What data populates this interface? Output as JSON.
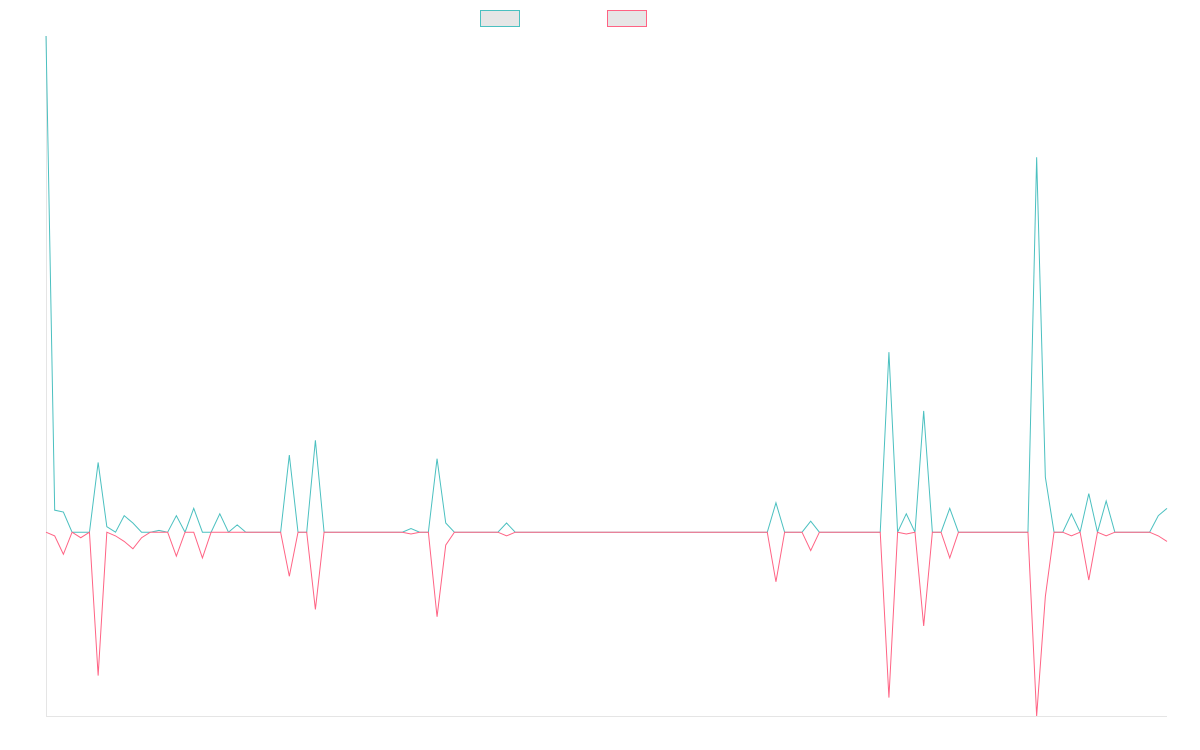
{
  "chart_data": {
    "type": "line",
    "title": "",
    "xlabel": "",
    "ylabel": "",
    "ylim": [
      -1,
      2.7
    ],
    "grid": false,
    "legend_placement": "top-center",
    "point_count": 130,
    "series": [
      {
        "name": "",
        "color": "#4bc0c0",
        "fill": "#e6e6e6",
        "points": [
          [
            0,
            2.7
          ],
          [
            1,
            0.12
          ],
          [
            2,
            0.11
          ],
          [
            6,
            0.38
          ],
          [
            7,
            0.03
          ],
          [
            9,
            0.09
          ],
          [
            10,
            0.05
          ],
          [
            13,
            0.01
          ],
          [
            15,
            0.09
          ],
          [
            17,
            0.13
          ],
          [
            20,
            0.1
          ],
          [
            22,
            0.04
          ],
          [
            28,
            0.42
          ],
          [
            31,
            0.5
          ],
          [
            42,
            0.02
          ],
          [
            45,
            0.4
          ],
          [
            46,
            0.05
          ],
          [
            53,
            0.05
          ],
          [
            84,
            0.16
          ],
          [
            88,
            0.06
          ],
          [
            97,
            0.98
          ],
          [
            99,
            0.1
          ],
          [
            101,
            0.66
          ],
          [
            104,
            0.13
          ],
          [
            114,
            2.04
          ],
          [
            115,
            0.3
          ],
          [
            118,
            0.1
          ],
          [
            120,
            0.21
          ],
          [
            122,
            0.17
          ],
          [
            128,
            0.09
          ],
          [
            129,
            0.13
          ]
        ]
      },
      {
        "name": "",
        "color": "#ff6384",
        "fill": "#e6e6e6",
        "points": [
          [
            1,
            -0.02
          ],
          [
            2,
            -0.12
          ],
          [
            4,
            -0.03
          ],
          [
            6,
            -0.78
          ],
          [
            8,
            -0.02
          ],
          [
            9,
            -0.05
          ],
          [
            10,
            -0.09
          ],
          [
            11,
            -0.03
          ],
          [
            15,
            -0.13
          ],
          [
            18,
            -0.14
          ],
          [
            28,
            -0.24
          ],
          [
            31,
            -0.42
          ],
          [
            42,
            -0.01
          ],
          [
            45,
            -0.46
          ],
          [
            46,
            -0.07
          ],
          [
            53,
            -0.02
          ],
          [
            84,
            -0.27
          ],
          [
            88,
            -0.1
          ],
          [
            97,
            -0.9
          ],
          [
            99,
            -0.01
          ],
          [
            101,
            -0.51
          ],
          [
            104,
            -0.14
          ],
          [
            114,
            -1.0
          ],
          [
            115,
            -0.35
          ],
          [
            118,
            -0.02
          ],
          [
            120,
            -0.26
          ],
          [
            122,
            -0.02
          ],
          [
            128,
            -0.02
          ],
          [
            129,
            -0.05
          ]
        ]
      }
    ]
  }
}
